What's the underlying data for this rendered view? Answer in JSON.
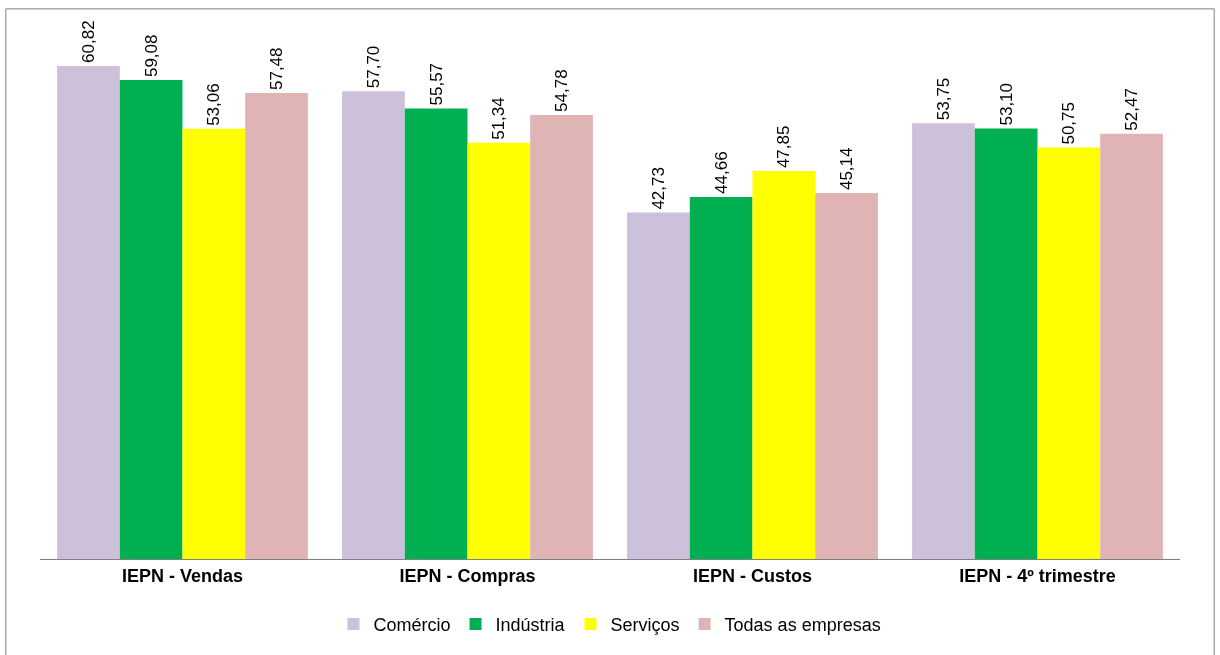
{
  "chart_data": {
    "type": "bar",
    "categories": [
      "IEPN - Vendas",
      "IEPN - Compras",
      "IEPN - Custos",
      "IEPN - 4º trimestre"
    ],
    "series": [
      {
        "name": "Comércio",
        "color": "#ccc0da",
        "values": [
          60.82,
          57.7,
          42.73,
          53.75
        ],
        "value_labels": [
          "60,82",
          "57,70",
          "42,73",
          "53,75"
        ]
      },
      {
        "name": "Indústria",
        "color": "#00b050",
        "values": [
          59.08,
          55.57,
          44.66,
          53.1
        ],
        "value_labels": [
          "59,08",
          "55,57",
          "44,66",
          "53,10"
        ]
      },
      {
        "name": "Serviços",
        "color": "#ffff00",
        "values": [
          53.06,
          51.34,
          47.85,
          50.75
        ],
        "value_labels": [
          "53,06",
          "51,34",
          "47,85",
          "50,75"
        ]
      },
      {
        "name": "Todas as empresas",
        "color": "#e0b4b4",
        "values": [
          57.48,
          54.78,
          45.14,
          52.47
        ],
        "value_labels": [
          "57,48",
          "54,78",
          "45,14",
          "52,47"
        ]
      }
    ],
    "tick_labels": "x",
    "legend": "bottom"
  }
}
